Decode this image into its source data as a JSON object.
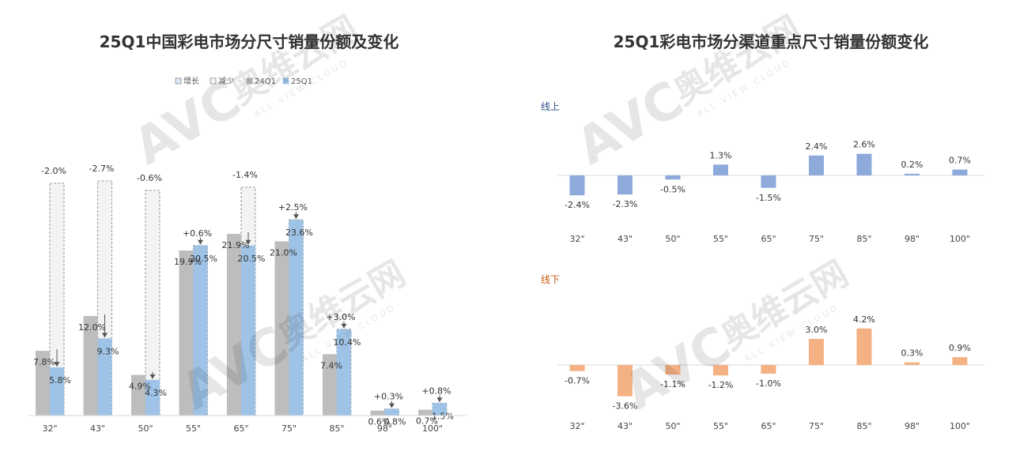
{
  "chart_data": [
    {
      "type": "bar",
      "title": "25Q1中国彩电市场分尺寸销量份额及变化",
      "legend": [
        "增长",
        "减少",
        "24Q1",
        "25Q1"
      ],
      "legend_position": "top-right",
      "categories": [
        "32\"",
        "43\"",
        "50\"",
        "55\"",
        "65\"",
        "75\"",
        "85\"",
        "98\"",
        "100\""
      ],
      "series": [
        {
          "name": "24Q1",
          "values": [
            7.8,
            12.0,
            4.9,
            19.9,
            21.9,
            21.0,
            7.4,
            0.6,
            0.7
          ],
          "labels": [
            "7.8%",
            "12.0%",
            "4.9%",
            "19.9%",
            "21.9%",
            "21.0%",
            "7.4%",
            "0.6%",
            "0.7%"
          ]
        },
        {
          "name": "25Q1",
          "values": [
            5.8,
            9.3,
            4.3,
            20.5,
            20.5,
            23.6,
            10.4,
            0.8,
            1.5
          ],
          "labels": [
            "5.8%",
            "9.3%",
            "4.3%",
            "20.5%",
            "20.5%",
            "23.6%",
            "10.4%",
            "0.8%",
            "1.5%"
          ]
        }
      ],
      "change": [
        -2.0,
        -2.7,
        -0.6,
        0.6,
        -1.4,
        2.5,
        3.0,
        0.3,
        0.8
      ],
      "change_labels": [
        "-2.0%",
        "-2.7%",
        "-0.6%",
        "+0.6%",
        "-1.4%",
        "+2.5%",
        "+3.0%",
        "+0.3%",
        "+0.8%"
      ],
      "colors": {
        "24Q1": "#bdbdbd",
        "25Q1": "#9ec3e6",
        "increase": "#dde9f6",
        "decrease": "#f3f3f3"
      }
    },
    {
      "type": "bar",
      "title": "25Q1彩电市场分渠道重点尺寸销量份额变化",
      "panels": [
        {
          "name": "线上",
          "categories": [
            "32\"",
            "43\"",
            "50\"",
            "55\"",
            "65\"",
            "75\"",
            "85\"",
            "98\"",
            "100\""
          ],
          "values": [
            -2.4,
            -2.3,
            -0.5,
            1.3,
            -1.5,
            2.4,
            2.6,
            0.2,
            0.7
          ],
          "labels": [
            "-2.4%",
            "-2.3%",
            "-0.5%",
            "1.3%",
            "-1.5%",
            "2.4%",
            "2.6%",
            "0.2%",
            "0.7%"
          ],
          "color": "#8eaadb"
        },
        {
          "name": "线下",
          "categories": [
            "32\"",
            "43\"",
            "50\"",
            "55\"",
            "65\"",
            "75\"",
            "85\"",
            "98\"",
            "100\""
          ],
          "values": [
            -0.7,
            -3.6,
            -1.1,
            -1.2,
            -1.0,
            3.0,
            4.2,
            0.3,
            0.9
          ],
          "labels": [
            "-0.7%",
            "-3.6%",
            "-1.1%",
            "-1.2%",
            "-1.0%",
            "3.0%",
            "4.2%",
            "0.3%",
            "0.9%"
          ],
          "color": "#f4b183"
        }
      ]
    }
  ],
  "watermark": {
    "brand": "AVC",
    "cn": "奥维云网",
    "en": "ALL VIEW CLOUD"
  }
}
